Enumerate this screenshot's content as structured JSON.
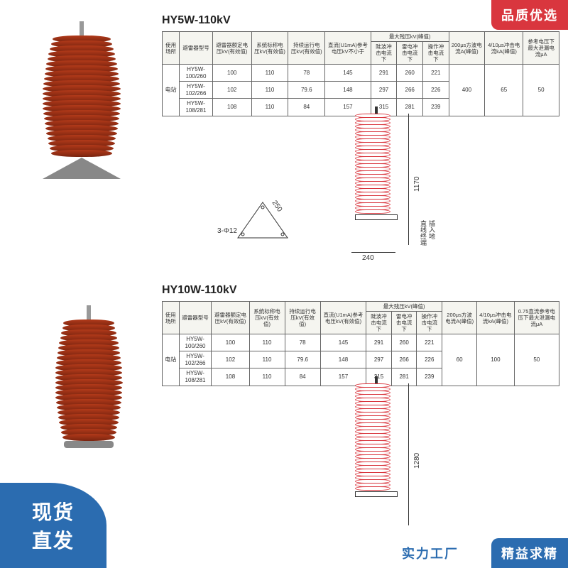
{
  "badges": {
    "top_right": "品质优选",
    "bottom_left_l1": "现货",
    "bottom_left_l2": "直发",
    "bottom_right": "精益求精",
    "bottom_right2": "实力工厂"
  },
  "section1": {
    "title": "HY5W-110kV",
    "photo": {
      "fin_count": 24,
      "fin_color": "#a63418",
      "has_tri_base": true
    },
    "diagram": {
      "fin_count": 28,
      "height_label": "1170",
      "base_w": "240",
      "tri_side": "250",
      "tri_hole": "3-Φ12",
      "note1": "直线终端",
      "note2": "插入地"
    },
    "table": {
      "group_headers": [
        "使用场所",
        "避雷器型号",
        "避雷器额定电压kV(有效值)",
        "系统标称电压kV(有效值)",
        "持续运行电压kV(有效值)",
        "直流(U1mA)参考电压kV不小于",
        "最大残压kV(峰值)",
        "200μs方波电流A(峰值)",
        "4/10μs冲击电流kA(峰值)",
        "参考电压下最大泄漏电流μA"
      ],
      "sub_headers": [
        "陡波冲击电流下",
        "雷电冲击电流下",
        "操作冲击电流下"
      ],
      "place": "电站",
      "rows": [
        {
          "model": "HY5W-100/260",
          "rated": "100",
          "sys": "110",
          "cont": "78",
          "dc": "145",
          "r1": "291",
          "r2": "260",
          "r3": "221"
        },
        {
          "model": "HY5W-102/266",
          "rated": "102",
          "sys": "110",
          "cont": "79.6",
          "dc": "148",
          "r1": "297",
          "r2": "266",
          "r3": "226"
        },
        {
          "model": "HY5W-108/281",
          "rated": "108",
          "sys": "110",
          "cont": "84",
          "dc": "157",
          "r1": "315",
          "r2": "281",
          "r3": "239"
        }
      ],
      "c200us": "400",
      "c410": "65",
      "leak": "50"
    }
  },
  "section2": {
    "title": "HY10W-110kV",
    "photo": {
      "fin_count": 24,
      "fin_color": "#a63418",
      "has_tri_base": false
    },
    "diagram": {
      "fin_count": 30,
      "height_label": "1280"
    },
    "table": {
      "group_headers": [
        "使用场所",
        "避雷器型号",
        "避雷器额定电压kV(有效值)",
        "系统标称电压kV(有效值)",
        "持续运行电压kV(有效值)",
        "直流(U1mA)参考电压kV(有效值)",
        "最大残压kV(峰值)",
        "200μs方波电流A(峰值)",
        "4/10μs冲击电流kA(峰值)",
        "0.75直流参考电压下最大泄漏电流μA"
      ],
      "sub_headers": [
        "陡波冲击电流下",
        "雷电冲击电流下",
        "操作冲击电流下"
      ],
      "place": "电站",
      "rows": [
        {
          "model": "HY5W-100/260",
          "rated": "100",
          "sys": "110",
          "cont": "78",
          "dc": "145",
          "r1": "291",
          "r2": "260",
          "r3": "221"
        },
        {
          "model": "HY5W-102/266",
          "rated": "102",
          "sys": "110",
          "cont": "79.6",
          "dc": "148",
          "r1": "297",
          "r2": "266",
          "r3": "226"
        },
        {
          "model": "HY5W-108/281",
          "rated": "108",
          "sys": "110",
          "cont": "84",
          "dc": "157",
          "r1": "315",
          "r2": "281",
          "r3": "239"
        }
      ],
      "c200us": "60",
      "c410": "100",
      "leak": "50"
    }
  }
}
